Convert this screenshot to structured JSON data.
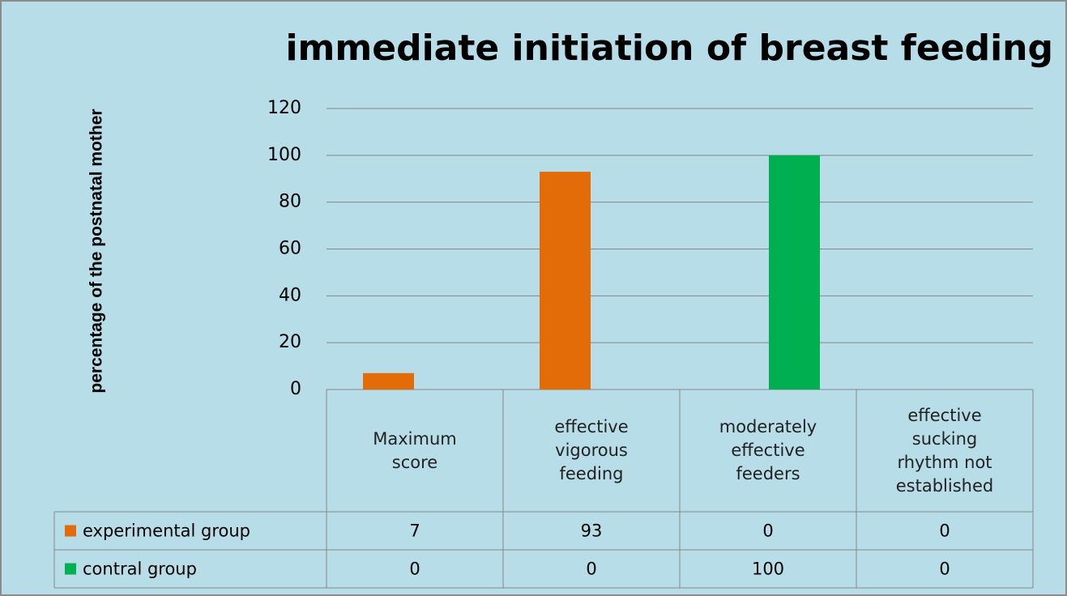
{
  "chart_data": {
    "type": "bar",
    "title": "immediate initiation of breast feeding",
    "y_label": "percentage of the postnatal mother",
    "categories": [
      "Maximum score",
      "effective vigorous feeding",
      "moderately effective feeders",
      "effective sucking rhythm not established"
    ],
    "series": [
      {
        "name": "experimental group",
        "color": "#e36c09",
        "values": [
          7,
          93,
          0,
          0
        ]
      },
      {
        "name": "contral group",
        "color": "#00b050",
        "values": [
          0,
          0,
          100,
          0
        ]
      }
    ],
    "ylim": [
      0,
      120
    ],
    "yticks": [
      0,
      20,
      40,
      60,
      80,
      100,
      120
    ],
    "grid": true,
    "data_table": true
  }
}
